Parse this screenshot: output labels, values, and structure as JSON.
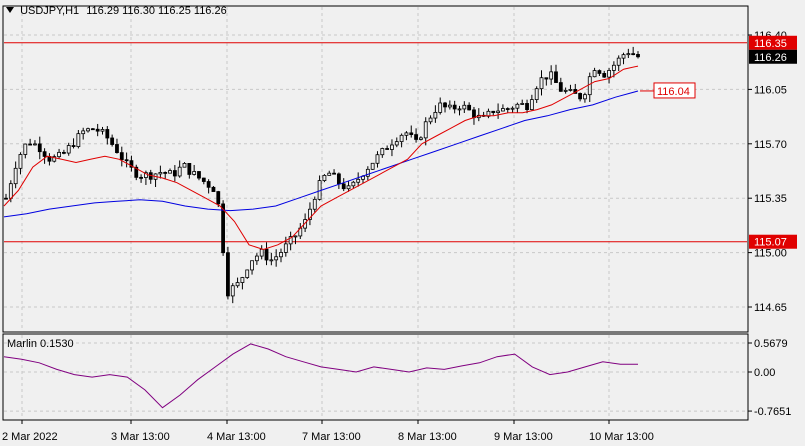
{
  "header": {
    "dropdown_icon": "triangle-down-icon",
    "symbol": "USDJPY,H1",
    "ohlc": "116.29 116.30 116.25 116.26"
  },
  "indicator": {
    "label": "Marlin 0.1530",
    "levels": [
      "0.5679",
      "0.00",
      "-0.7651"
    ]
  },
  "price_axis": {
    "ticks": [
      "116.40",
      "116.05",
      "115.70",
      "115.35",
      "115.00",
      "114.65"
    ],
    "tags": [
      {
        "label": "116.35",
        "value": 116.35,
        "style": "red-fill"
      },
      {
        "label": "116.26",
        "value": 116.26,
        "style": "black-fill"
      },
      {
        "label": "115.07",
        "value": 115.07,
        "style": "red-fill"
      }
    ]
  },
  "time_axis": {
    "ticks": [
      "2 Mar 2022",
      "3 Mar 13:00",
      "4 Mar 13:00",
      "7 Mar 13:00",
      "8 Mar 13:00",
      "9 Mar 13:00",
      "10 Mar 13:00"
    ]
  },
  "annotation": {
    "label": "116.04",
    "value": 116.04
  },
  "colors": {
    "background": "#f0f0f0",
    "grid": "#c8c8c8",
    "candles": "#000000",
    "level_line": "#e00000",
    "ma_fast": "#e00000",
    "ma_slow": "#0000e0",
    "oscillator": "#800080"
  },
  "chart_data": {
    "type": "candlestick",
    "title": "USDJPY,H1",
    "ylim": [
      114.55,
      116.48
    ],
    "x_labels": [
      "2 Mar 2022",
      "3 Mar 13:00",
      "4 Mar 13:00",
      "7 Mar 13:00",
      "8 Mar 13:00",
      "9 Mar 13:00",
      "10 Mar 13:00"
    ],
    "horizontal_levels": [
      116.35,
      115.07
    ],
    "close_path": [
      115.35,
      115.6,
      115.72,
      115.68,
      115.6,
      115.62,
      115.7,
      115.78,
      115.8,
      115.75,
      115.66,
      115.55,
      115.5,
      115.5,
      115.52,
      115.5,
      115.56,
      115.5,
      115.45,
      115.4,
      114.75,
      114.8,
      114.95,
      115.0,
      114.95,
      115.02,
      115.1,
      115.2,
      115.4,
      115.52,
      115.45,
      115.4,
      115.5,
      115.58,
      115.65,
      115.73,
      115.78,
      115.7,
      115.85,
      115.95,
      115.92,
      115.95,
      115.9,
      115.85,
      115.92,
      115.92,
      115.95,
      115.95,
      116.1,
      116.15,
      116.05,
      116.02,
      116.0,
      116.2,
      116.15,
      116.22,
      116.3,
      116.26
    ],
    "ma_fast": [
      115.3,
      115.4,
      115.55,
      115.62,
      115.6,
      115.58,
      115.6,
      115.62,
      115.6,
      115.55,
      115.5,
      115.48,
      115.45,
      115.4,
      115.35,
      115.3,
      115.2,
      115.05,
      115.02,
      115.05,
      115.1,
      115.2,
      115.3,
      115.35,
      115.4,
      115.45,
      115.5,
      115.55,
      115.6,
      115.7,
      115.75,
      115.8,
      115.85,
      115.88,
      115.88,
      115.9,
      115.9,
      115.92,
      115.95,
      116.0,
      116.05,
      116.1,
      116.12,
      116.18,
      116.2
    ],
    "ma_slow": [
      115.23,
      115.25,
      115.28,
      115.3,
      115.32,
      115.33,
      115.34,
      115.33,
      115.3,
      115.28,
      115.27,
      115.28,
      115.3,
      115.35,
      115.4,
      115.45,
      115.5,
      115.55,
      115.6,
      115.65,
      115.7,
      115.75,
      115.8,
      115.85,
      115.88,
      115.92,
      115.95,
      116.0,
      116.04
    ],
    "indicator": {
      "name": "Marlin",
      "value": 0.153,
      "levels": [
        0.5679,
        0.0,
        -0.7651
      ],
      "series": [
        0.3,
        0.25,
        0.18,
        0.05,
        -0.05,
        -0.1,
        -0.05,
        -0.1,
        -0.35,
        -0.7,
        -0.45,
        -0.15,
        0.1,
        0.35,
        0.55,
        0.45,
        0.3,
        0.2,
        0.1,
        0.05,
        0.0,
        0.1,
        0.05,
        0.0,
        0.08,
        0.05,
        0.12,
        0.18,
        0.3,
        0.35,
        0.1,
        -0.05,
        0.0,
        0.1,
        0.2,
        0.15,
        0.153
      ]
    }
  }
}
